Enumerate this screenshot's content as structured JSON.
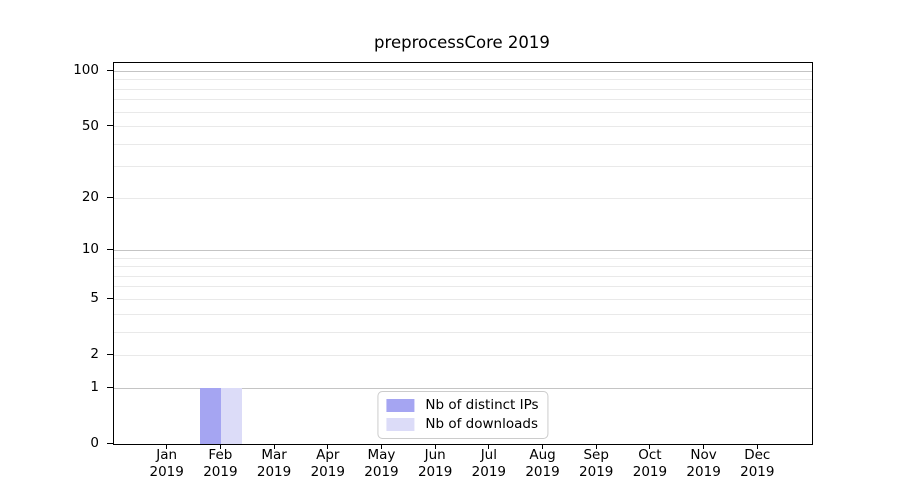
{
  "chart_data": {
    "type": "bar",
    "title": "preprocessCore 2019",
    "x_year": "2019",
    "categories": [
      "Jan",
      "Feb",
      "Mar",
      "Apr",
      "May",
      "Jun",
      "Jul",
      "Aug",
      "Sep",
      "Oct",
      "Nov",
      "Dec"
    ],
    "series": [
      {
        "name": "Nb of distinct IPs",
        "color": "#a5a5f2",
        "values": [
          0,
          1,
          0,
          0,
          0,
          0,
          0,
          0,
          0,
          0,
          0,
          0
        ]
      },
      {
        "name": "Nb of downloads",
        "color": "#dcdcf8",
        "values": [
          0,
          1,
          0,
          0,
          0,
          0,
          0,
          0,
          0,
          0,
          0,
          0
        ]
      }
    ],
    "y_axis": {
      "scale": "log1p",
      "lim": [
        0,
        111
      ],
      "tick_values": [
        0,
        1,
        2,
        5,
        10,
        20,
        50,
        100
      ],
      "tick_labels": [
        "0",
        "1",
        "2",
        "5",
        "10",
        "20",
        "50",
        "100"
      ],
      "major_grid_values": [
        1,
        10,
        100
      ],
      "minor_grid_values": [
        2,
        3,
        4,
        5,
        6,
        7,
        8,
        9,
        20,
        30,
        40,
        50,
        60,
        70,
        80,
        90
      ]
    },
    "legend": {
      "position": "lower center",
      "entries": [
        "Nb of distinct IPs",
        "Nb of downloads"
      ]
    },
    "colors": {
      "bar_distinct_ips": "#a5a5f2",
      "bar_downloads": "#dcdcf8",
      "grid_major": "#c4c4c4",
      "grid_minor": "#e9e9e9",
      "spine": "#000000",
      "legend_border": "#cccccc",
      "background": "#ffffff",
      "text": "#000000"
    }
  }
}
